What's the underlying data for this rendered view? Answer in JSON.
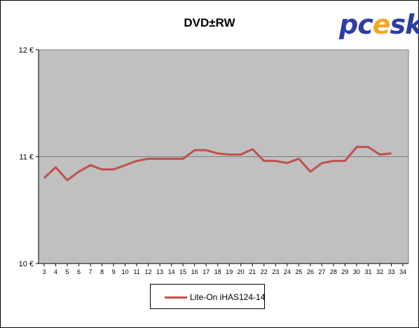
{
  "chart_data": {
    "type": "line",
    "title": "DVD±RW",
    "xlabel": "",
    "ylabel": "",
    "x": [
      3,
      4,
      5,
      6,
      7,
      8,
      9,
      10,
      11,
      12,
      13,
      14,
      15,
      16,
      17,
      18,
      19,
      20,
      21,
      22,
      23,
      24,
      25,
      26,
      27,
      28,
      29,
      30,
      31,
      32,
      33
    ],
    "x_ticks": [
      3,
      4,
      5,
      6,
      7,
      8,
      9,
      10,
      11,
      12,
      13,
      14,
      15,
      16,
      17,
      18,
      19,
      20,
      21,
      22,
      23,
      24,
      25,
      26,
      27,
      28,
      29,
      30,
      31,
      32,
      33,
      34
    ],
    "xlim": [
      3,
      34
    ],
    "ylim": [
      10,
      12
    ],
    "y_ticks": [
      10,
      11,
      12
    ],
    "y_tick_labels": [
      "10 €",
      "11 €",
      "12 €"
    ],
    "grid": "horizontal",
    "legend_position": "bottom",
    "plot_background": "#c0c0c0",
    "series": [
      {
        "name": "Lite-On  iHAS124-14",
        "color": "#c0504d",
        "values": [
          10.8,
          10.9,
          10.78,
          10.86,
          10.92,
          10.88,
          10.88,
          10.92,
          10.96,
          10.98,
          10.98,
          10.98,
          10.98,
          11.06,
          11.06,
          11.03,
          11.02,
          11.02,
          11.07,
          10.96,
          10.96,
          10.94,
          10.98,
          10.86,
          10.94,
          10.96,
          10.96,
          11.09,
          11.09,
          11.02,
          11.03
        ]
      }
    ]
  },
  "logo": {
    "prefix": "pc",
    "flame": "e",
    "suffix": "sk"
  }
}
